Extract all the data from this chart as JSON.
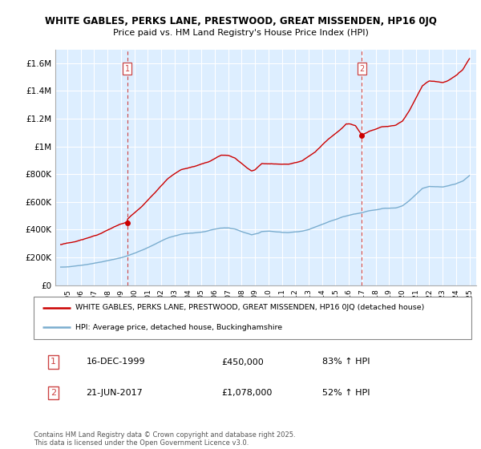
{
  "title1": "WHITE GABLES, PERKS LANE, PRESTWOOD, GREAT MISSENDEN, HP16 0JQ",
  "title2": "Price paid vs. HM Land Registry's House Price Index (HPI)",
  "ylabel_ticks": [
    "£0",
    "£200K",
    "£400K",
    "£600K",
    "£800K",
    "£1M",
    "£1.2M",
    "£1.4M",
    "£1.6M"
  ],
  "ytick_vals": [
    0,
    200000,
    400000,
    600000,
    800000,
    1000000,
    1200000,
    1400000,
    1600000
  ],
  "ylim": [
    0,
    1700000
  ],
  "vline1_year": 1999.96,
  "vline2_year": 2017.47,
  "sale1_label": "1",
  "sale1_date": "16-DEC-1999",
  "sale1_price": "£450,000",
  "sale1_hpi": "83% ↑ HPI",
  "sale2_label": "2",
  "sale2_date": "21-JUN-2017",
  "sale2_price": "£1,078,000",
  "sale2_hpi": "52% ↑ HPI",
  "legend_line1": "WHITE GABLES, PERKS LANE, PRESTWOOD, GREAT MISSENDEN, HP16 0JQ (detached house)",
  "legend_line2": "HPI: Average price, detached house, Buckinghamshire",
  "footnote": "Contains HM Land Registry data © Crown copyright and database right 2025.\nThis data is licensed under the Open Government Licence v3.0.",
  "red_color": "#cc0000",
  "blue_color": "#7aadcf",
  "bg_color": "#ddeeff",
  "grid_color": "#ffffff",
  "vline_color": "#cc4444",
  "box_color": "#cc4444"
}
